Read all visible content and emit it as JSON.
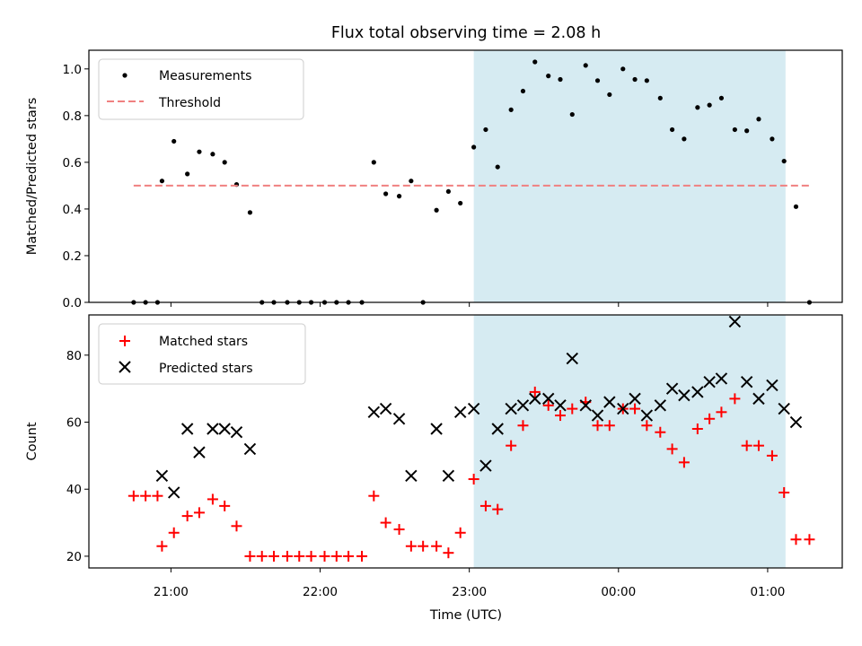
{
  "chart_data": {
    "title": "Flux total observing time = 2.08 h",
    "xlabel": "Time (UTC)",
    "x_ticks": [
      "21:00",
      "22:00",
      "23:00",
      "00:00",
      "01:00"
    ],
    "x_tick_hours": [
      21,
      22,
      23,
      24,
      25
    ],
    "x_range_hours": [
      20.45,
      25.5
    ],
    "shaded_span_hours": [
      23.03,
      25.12
    ],
    "shade_color": "#add8e6",
    "panels": [
      {
        "type": "scatter",
        "ylabel": "Matched/Predicted stars",
        "ylim": [
          0,
          1.08
        ],
        "y_ticks": [
          0.0,
          0.2,
          0.4,
          0.6,
          0.8,
          1.0
        ],
        "y_tick_labels": [
          "0.0",
          "0.2",
          "0.4",
          "0.6",
          "0.8",
          "1.0"
        ],
        "legend_position": "upper left",
        "series": [
          {
            "name": "Measurements",
            "marker": "dot",
            "color": "#000000",
            "x": [
              20.75,
              20.83,
              20.91,
              20.94,
              21.02,
              21.11,
              21.19,
              21.28,
              21.36,
              21.44,
              21.53,
              21.61,
              21.69,
              21.78,
              21.86,
              21.94,
              22.03,
              22.11,
              22.19,
              22.28,
              22.36,
              22.44,
              22.53,
              22.61,
              22.69,
              22.78,
              22.86,
              22.94,
              23.03,
              23.11,
              23.19,
              23.28,
              23.36,
              23.44,
              23.53,
              23.61,
              23.69,
              23.78,
              23.86,
              23.94,
              24.03,
              24.11,
              24.19,
              24.28,
              24.36,
              24.44,
              24.53,
              24.61,
              24.69,
              24.78,
              24.86,
              24.94,
              25.03,
              25.11,
              25.19,
              25.28
            ],
            "y": [
              0.0,
              0.0,
              0.0,
              0.52,
              0.69,
              0.55,
              0.645,
              0.635,
              0.6,
              0.505,
              0.385,
              0.0,
              0.0,
              0.0,
              0.0,
              0.0,
              0.0,
              0.0,
              0.0,
              0.0,
              0.6,
              0.465,
              0.455,
              0.52,
              0.0,
              0.395,
              0.475,
              0.425,
              0.665,
              0.74,
              0.58,
              0.825,
              0.905,
              1.03,
              0.97,
              0.955,
              0.805,
              1.015,
              0.95,
              0.89,
              1.0,
              0.955,
              0.95,
              0.875,
              0.74,
              0.7,
              0.835,
              0.845,
              0.875,
              0.74,
              0.735,
              0.785,
              0.7,
              0.605,
              0.41,
              0.0
            ]
          },
          {
            "name": "Threshold",
            "marker": "dashed-line",
            "color": "#f08080",
            "x": [
              20.75,
              25.28
            ],
            "y": [
              0.5,
              0.5
            ]
          }
        ]
      },
      {
        "type": "scatter",
        "ylabel": "Count",
        "ylim": [
          16.5,
          92
        ],
        "y_ticks": [
          20,
          40,
          60,
          80
        ],
        "y_tick_labels": [
          "20",
          "40",
          "60",
          "80"
        ],
        "legend_position": "upper left",
        "series": [
          {
            "name": "Matched stars",
            "marker": "plus",
            "color": "#ff0000",
            "x": [
              20.75,
              20.83,
              20.91,
              20.94,
              21.02,
              21.11,
              21.19,
              21.28,
              21.36,
              21.44,
              21.53,
              21.61,
              21.69,
              21.78,
              21.86,
              21.94,
              22.03,
              22.11,
              22.19,
              22.28,
              22.36,
              22.44,
              22.53,
              22.61,
              22.69,
              22.78,
              22.86,
              22.94,
              23.03,
              23.11,
              23.19,
              23.28,
              23.36,
              23.44,
              23.53,
              23.61,
              23.69,
              23.78,
              23.86,
              23.94,
              24.03,
              24.11,
              24.19,
              24.28,
              24.36,
              24.44,
              24.53,
              24.61,
              24.69,
              24.78,
              24.86,
              24.94,
              25.03,
              25.11,
              25.19,
              25.28
            ],
            "y": [
              38,
              38,
              38,
              23,
              27,
              32,
              33,
              37,
              35,
              29,
              20,
              20,
              20,
              20,
              20,
              20,
              20,
              20,
              20,
              20,
              38,
              30,
              28,
              23,
              23,
              23,
              21,
              27,
              43,
              35,
              34,
              53,
              59,
              69,
              65,
              62,
              64,
              66,
              59,
              59,
              64,
              64,
              59,
              57,
              52,
              48,
              58,
              61,
              63,
              67,
              53,
              53,
              50,
              39,
              25,
              25
            ]
          },
          {
            "name": "Predicted stars",
            "marker": "x",
            "color": "#000000",
            "x": [
              20.94,
              21.02,
              21.11,
              21.19,
              21.28,
              21.36,
              21.44,
              21.53,
              22.36,
              22.44,
              22.53,
              22.61,
              22.78,
              22.86,
              22.94,
              23.03,
              23.11,
              23.19,
              23.28,
              23.36,
              23.44,
              23.53,
              23.61,
              23.69,
              23.78,
              23.86,
              23.94,
              24.03,
              24.11,
              24.19,
              24.28,
              24.36,
              24.44,
              24.53,
              24.61,
              24.69,
              24.78,
              24.86,
              24.94,
              25.03,
              25.11,
              25.19
            ],
            "y": [
              44,
              39,
              58,
              51,
              58,
              58,
              57,
              52,
              63,
              64,
              61,
              44,
              58,
              44,
              63,
              64,
              47,
              58,
              64,
              65,
              67,
              67,
              65,
              79,
              65,
              62,
              66,
              64,
              67,
              62,
              65,
              70,
              68,
              69,
              72,
              73,
              90,
              72,
              67,
              71,
              64,
              60
            ]
          }
        ]
      }
    ]
  }
}
